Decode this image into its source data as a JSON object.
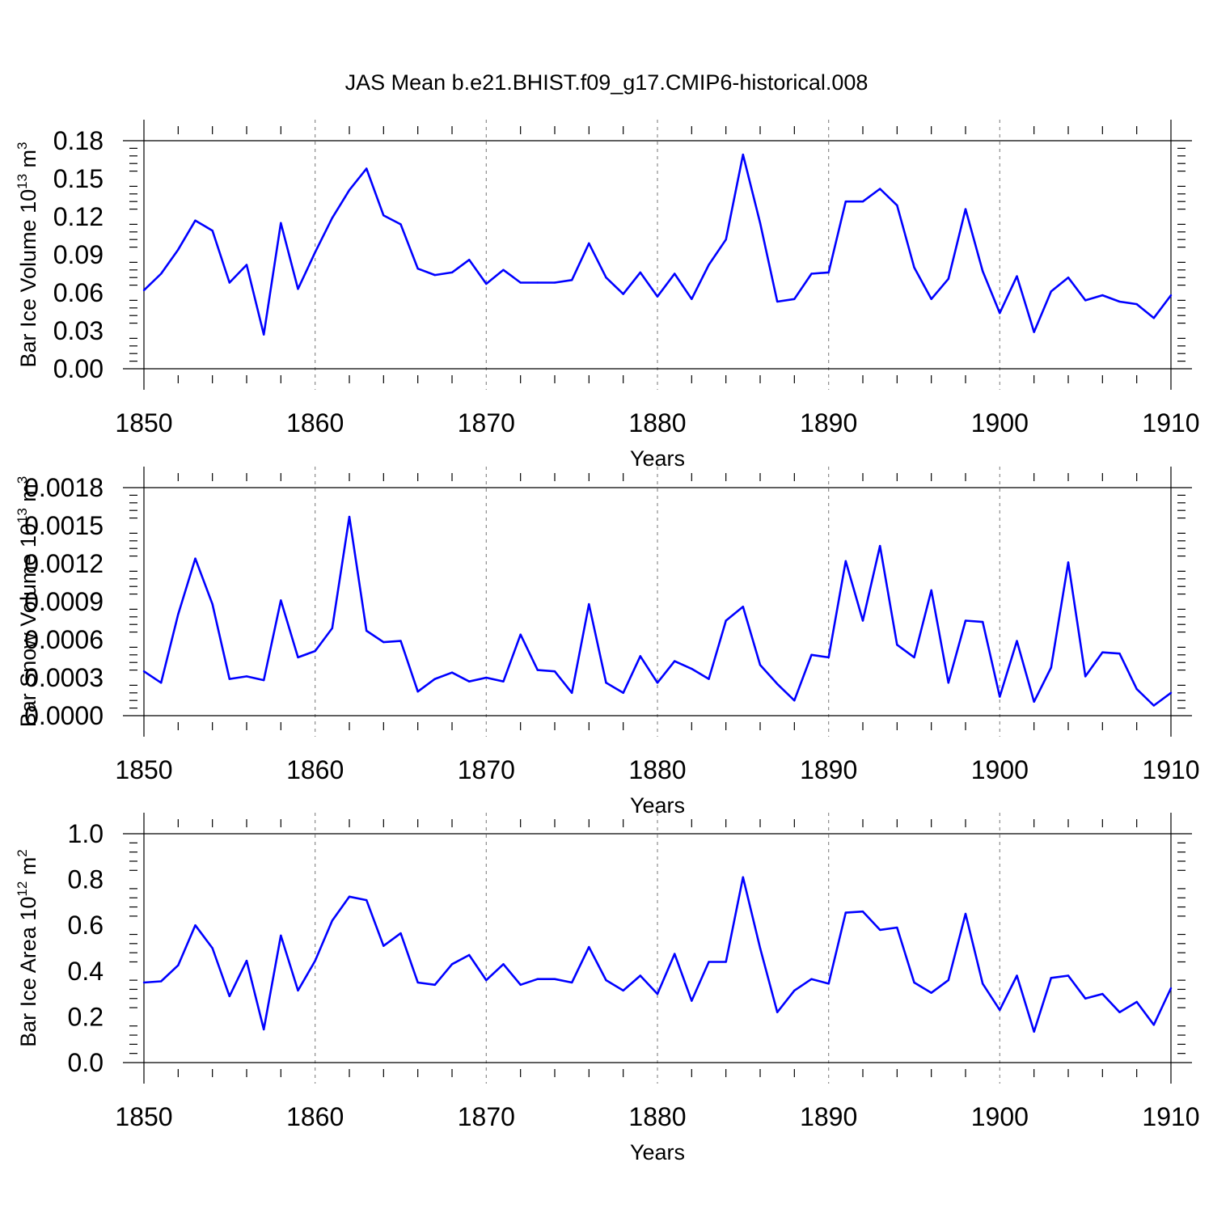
{
  "title": "JAS Mean b.e21.BHIST.f09_g17.CMIP6-historical.008",
  "colors": {
    "line": "#0000ff",
    "axis": "#000000",
    "grid": "#8c8c8c"
  },
  "chart_data": [
    {
      "type": "line",
      "ylabel_main": "Bar Ice Volume 10",
      "ylabel_sup1": "13",
      "ylabel_unit": " m",
      "ylabel_sup2": "3",
      "xlabel": "Years",
      "xlim": [
        1850,
        1910
      ],
      "ylim": [
        0,
        0.18
      ],
      "yticks": [
        0,
        0.03,
        0.06,
        0.09,
        0.12,
        0.15,
        0.18
      ],
      "ytick_labels": [
        "0.00",
        "0.03",
        "0.06",
        "0.09",
        "0.12",
        "0.15",
        "0.18"
      ],
      "xticks": [
        1850,
        1860,
        1870,
        1880,
        1890,
        1900,
        1910
      ],
      "xtick_labels": [
        "1850",
        "1860",
        "1870",
        "1880",
        "1890",
        "1900",
        "1910"
      ],
      "x_start": 1850,
      "values": [
        0.062,
        0.075,
        0.094,
        0.117,
        0.109,
        0.068,
        0.082,
        0.027,
        0.115,
        0.063,
        0.092,
        0.119,
        0.141,
        0.158,
        0.121,
        0.114,
        0.079,
        0.074,
        0.076,
        0.086,
        0.067,
        0.078,
        0.068,
        0.068,
        0.068,
        0.07,
        0.099,
        0.072,
        0.059,
        0.076,
        0.057,
        0.075,
        0.055,
        0.082,
        0.102,
        0.169,
        0.115,
        0.053,
        0.055,
        0.075,
        0.076,
        0.132,
        0.132,
        0.142,
        0.129,
        0.08,
        0.055,
        0.071,
        0.126,
        0.077,
        0.044,
        0.073,
        0.029,
        0.061,
        0.072,
        0.054,
        0.058,
        0.053,
        0.051,
        0.04,
        0.058
      ]
    },
    {
      "type": "line",
      "ylabel_main": "Bar Snow Volume 10",
      "ylabel_sup1": "13",
      "ylabel_unit": " m",
      "ylabel_sup2": "3",
      "xlabel": "Years",
      "xlim": [
        1850,
        1910
      ],
      "ylim": [
        0,
        0.0018
      ],
      "yticks": [
        0,
        0.0003,
        0.0006,
        0.0009,
        0.0012,
        0.0015,
        0.0018
      ],
      "ytick_labels": [
        "0.0000",
        "0.0003",
        "0.0006",
        "0.0009",
        "0.0012",
        "0.0015",
        "0.0018"
      ],
      "xticks": [
        1850,
        1860,
        1870,
        1880,
        1890,
        1900,
        1910
      ],
      "xtick_labels": [
        "1850",
        "1860",
        "1870",
        "1880",
        "1890",
        "1900",
        "1910"
      ],
      "x_start": 1850,
      "values": [
        0.00035,
        0.00026,
        0.0008,
        0.00124,
        0.00088,
        0.00029,
        0.00031,
        0.00028,
        0.00091,
        0.00046,
        0.00051,
        0.00069,
        0.00157,
        0.00067,
        0.00058,
        0.00059,
        0.00019,
        0.00029,
        0.00034,
        0.00027,
        0.0003,
        0.00027,
        0.00064,
        0.00036,
        0.00035,
        0.00018,
        0.00088,
        0.00026,
        0.00018,
        0.00047,
        0.00026,
        0.00043,
        0.00037,
        0.00029,
        0.00075,
        0.00086,
        0.0004,
        0.00025,
        0.00012,
        0.00048,
        0.00046,
        0.00122,
        0.00075,
        0.00134,
        0.00056,
        0.00046,
        0.00099,
        0.00026,
        0.00075,
        0.00074,
        0.00015,
        0.00059,
        0.00011,
        0.00038,
        0.00121,
        0.00031,
        0.0005,
        0.00049,
        0.00021,
        8e-05,
        0.00018
      ]
    },
    {
      "type": "line",
      "ylabel_main": "Bar Ice Area 10",
      "ylabel_sup1": "12",
      "ylabel_unit": " m",
      "ylabel_sup2": "2",
      "xlabel": "Years",
      "xlim": [
        1850,
        1910
      ],
      "ylim": [
        0,
        1.0
      ],
      "yticks": [
        0,
        0.2,
        0.4,
        0.6,
        0.8,
        1.0
      ],
      "ytick_labels": [
        "0.0",
        "0.2",
        "0.4",
        "0.6",
        "0.8",
        "1.0"
      ],
      "xticks": [
        1850,
        1860,
        1870,
        1880,
        1890,
        1900,
        1910
      ],
      "xtick_labels": [
        "1850",
        "1860",
        "1870",
        "1880",
        "1890",
        "1900",
        "1910"
      ],
      "x_start": 1850,
      "values": [
        0.35,
        0.355,
        0.425,
        0.6,
        0.5,
        0.29,
        0.445,
        0.145,
        0.555,
        0.315,
        0.445,
        0.62,
        0.725,
        0.71,
        0.51,
        0.565,
        0.35,
        0.34,
        0.43,
        0.47,
        0.36,
        0.43,
        0.34,
        0.365,
        0.365,
        0.35,
        0.505,
        0.36,
        0.315,
        0.38,
        0.3,
        0.475,
        0.27,
        0.44,
        0.44,
        0.81,
        0.5,
        0.22,
        0.315,
        0.365,
        0.345,
        0.655,
        0.66,
        0.58,
        0.59,
        0.35,
        0.305,
        0.36,
        0.65,
        0.345,
        0.23,
        0.38,
        0.135,
        0.37,
        0.38,
        0.28,
        0.3,
        0.22,
        0.265,
        0.165,
        0.325
      ]
    }
  ]
}
